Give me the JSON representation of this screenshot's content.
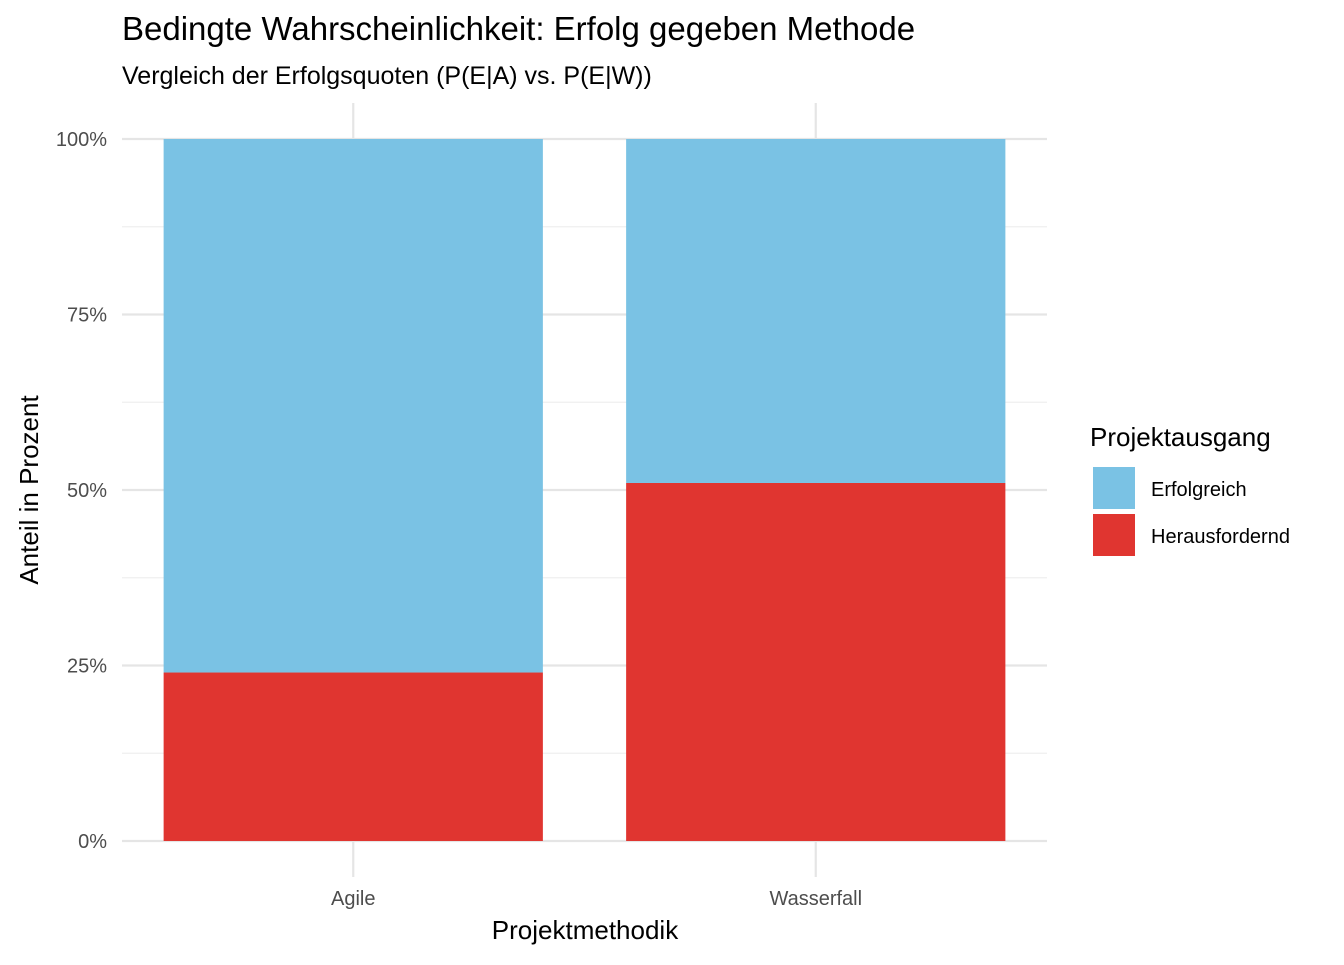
{
  "chart_data": {
    "type": "bar",
    "stacked": true,
    "title": "Bedingte Wahrscheinlichkeit: Erfolg gegeben Methode",
    "subtitle": "Vergleich der Erfolgsquoten (P(E|A) vs. P(E|W))",
    "xlabel": "Projektmethodik",
    "ylabel": "Anteil in Prozent",
    "categories": [
      "Agile",
      "Wasserfall"
    ],
    "ylim": [
      0,
      1
    ],
    "yticks": [
      {
        "value": 0,
        "label": "0%"
      },
      {
        "value": 0.25,
        "label": "25%"
      },
      {
        "value": 0.5,
        "label": "50%"
      },
      {
        "value": 0.75,
        "label": "75%"
      },
      {
        "value": 1,
        "label": "100%"
      }
    ],
    "grid": true,
    "legend": {
      "title": "Projektausgang",
      "position": "right"
    },
    "series": [
      {
        "name": "Erfolgreich",
        "color": "#7AC2E4",
        "values": [
          0.76,
          0.49
        ]
      },
      {
        "name": "Herausfordernd",
        "color": "#E03530",
        "values": [
          0.24,
          0.51
        ]
      }
    ],
    "stack_order": [
      "Herausfordernd",
      "Erfolgreich"
    ]
  }
}
